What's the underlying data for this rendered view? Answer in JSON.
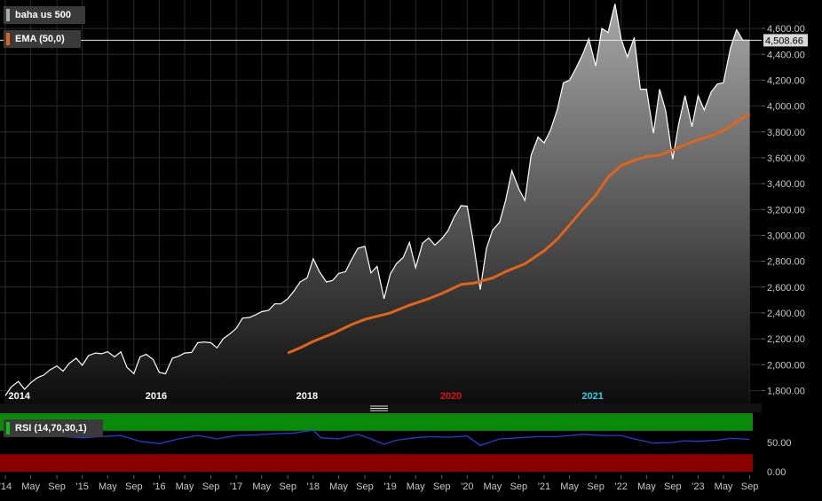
{
  "colors": {
    "background": "#000000",
    "grid": "#2b2b2b",
    "price_line": "#ffffff",
    "price_fill_top": "#a8a8a8",
    "price_fill_bottom": "#0c0c0c",
    "ema": "#e0651a",
    "rsi_line": "#1f3fd6",
    "rsi_overbought": "#0a8a0a",
    "rsi_oversold": "#8a0000",
    "axis_text": "#c8c8c8",
    "price_tag_bg": "#d9d9d9",
    "legend_bg": "#3a3a3a",
    "legend_swatch_price": "#aaaaaa"
  },
  "legend": {
    "price_label": "baha us 500",
    "ema_label": "EMA (50,0)",
    "rsi_label": "RSI (14,70,30,1)"
  },
  "last_price_label": "4,508.66",
  "year_labels": [
    {
      "text": "2014",
      "color": "#ffffff",
      "x": 2014.04
    },
    {
      "text": "2016",
      "color": "#ffffff",
      "x": 2015.96
    },
    {
      "text": "2018",
      "color": "#ffffff",
      "x": 2017.92
    },
    {
      "text": "2020",
      "color": "#e01010",
      "x": 2019.79
    },
    {
      "text": "2021",
      "color": "#22d3e6",
      "x": 2021.63
    }
  ],
  "chart_data": [
    {
      "type": "area",
      "title": "",
      "xlabel": "",
      "ylabel": "",
      "ylim": [
        1700,
        4820
      ],
      "xlim": [
        2014.0,
        2023.71
      ],
      "y_ticks": [
        1800,
        2000,
        2200,
        2400,
        2600,
        2800,
        3000,
        3200,
        3400,
        3600,
        3800,
        4000,
        4200,
        4400,
        4600
      ],
      "y_tick_labels": [
        "1,800.00",
        "2,000.00",
        "2,200.00",
        "2,400.00",
        "2,600.00",
        "2,800.00",
        "3,000.00",
        "3,200.00",
        "3,400.00",
        "3,600.00",
        "3,800.00",
        "4,000.00",
        "4,200.00",
        "4,400.00",
        "4,600.00"
      ],
      "x_ticks": [
        2014.0,
        2014.33,
        2014.67,
        2015.0,
        2015.33,
        2015.67,
        2016.0,
        2016.33,
        2016.67,
        2017.0,
        2017.33,
        2017.67,
        2018.0,
        2018.33,
        2018.67,
        2019.0,
        2019.33,
        2019.67,
        2020.0,
        2020.33,
        2020.67,
        2021.0,
        2021.33,
        2021.67,
        2022.0,
        2022.33,
        2022.67,
        2023.0,
        2023.33,
        2023.67
      ],
      "x_tick_labels": [
        "'14",
        "May",
        "Sep",
        "'15",
        "May",
        "Sep",
        "'16",
        "May",
        "Sep",
        "'17",
        "May",
        "Sep",
        "'18",
        "May",
        "Sep",
        "'19",
        "May",
        "Sep",
        "'20",
        "May",
        "Sep",
        "'21",
        "May",
        "Sep",
        "'22",
        "May",
        "Sep",
        "'23",
        "May",
        "Sep"
      ],
      "last_value": 4508.66,
      "series": [
        {
          "name": "baha us 500",
          "kind": "area",
          "points": [
            [
              2014.0,
              1760
            ],
            [
              2014.08,
              1830
            ],
            [
              2014.17,
              1870
            ],
            [
              2014.25,
              1810
            ],
            [
              2014.33,
              1860
            ],
            [
              2014.42,
              1900
            ],
            [
              2014.5,
              1920
            ],
            [
              2014.58,
              1960
            ],
            [
              2014.67,
              1990
            ],
            [
              2014.75,
              1950
            ],
            [
              2014.83,
              2010
            ],
            [
              2014.92,
              2050
            ],
            [
              2015.0,
              1995
            ],
            [
              2015.08,
              2070
            ],
            [
              2015.17,
              2090
            ],
            [
              2015.25,
              2085
            ],
            [
              2015.33,
              2100
            ],
            [
              2015.42,
              2060
            ],
            [
              2015.5,
              2100
            ],
            [
              2015.58,
              1980
            ],
            [
              2015.67,
              1930
            ],
            [
              2015.75,
              2060
            ],
            [
              2015.83,
              2080
            ],
            [
              2015.92,
              2040
            ],
            [
              2016.0,
              1940
            ],
            [
              2016.08,
              1930
            ],
            [
              2016.17,
              2050
            ],
            [
              2016.25,
              2065
            ],
            [
              2016.33,
              2090
            ],
            [
              2016.42,
              2095
            ],
            [
              2016.5,
              2170
            ],
            [
              2016.58,
              2175
            ],
            [
              2016.67,
              2170
            ],
            [
              2016.75,
              2130
            ],
            [
              2016.83,
              2200
            ],
            [
              2016.92,
              2240
            ],
            [
              2017.0,
              2280
            ],
            [
              2017.08,
              2360
            ],
            [
              2017.17,
              2365
            ],
            [
              2017.25,
              2385
            ],
            [
              2017.33,
              2410
            ],
            [
              2017.42,
              2420
            ],
            [
              2017.5,
              2470
            ],
            [
              2017.58,
              2470
            ],
            [
              2017.67,
              2510
            ],
            [
              2017.75,
              2570
            ],
            [
              2017.83,
              2640
            ],
            [
              2017.92,
              2670
            ],
            [
              2018.0,
              2820
            ],
            [
              2018.08,
              2720
            ],
            [
              2018.17,
              2640
            ],
            [
              2018.25,
              2650
            ],
            [
              2018.33,
              2705
            ],
            [
              2018.42,
              2720
            ],
            [
              2018.5,
              2815
            ],
            [
              2018.58,
              2900
            ],
            [
              2018.67,
              2915
            ],
            [
              2018.75,
              2710
            ],
            [
              2018.83,
              2760
            ],
            [
              2018.92,
              2510
            ],
            [
              2019.0,
              2700
            ],
            [
              2019.08,
              2780
            ],
            [
              2019.17,
              2830
            ],
            [
              2019.25,
              2945
            ],
            [
              2019.33,
              2750
            ],
            [
              2019.42,
              2940
            ],
            [
              2019.5,
              2980
            ],
            [
              2019.58,
              2925
            ],
            [
              2019.67,
              2975
            ],
            [
              2019.75,
              3035
            ],
            [
              2019.83,
              3140
            ],
            [
              2019.92,
              3230
            ],
            [
              2020.0,
              3225
            ],
            [
              2020.08,
              2950
            ],
            [
              2020.17,
              2580
            ],
            [
              2020.25,
              2900
            ],
            [
              2020.33,
              3040
            ],
            [
              2020.42,
              3100
            ],
            [
              2020.5,
              3270
            ],
            [
              2020.58,
              3500
            ],
            [
              2020.67,
              3360
            ],
            [
              2020.75,
              3270
            ],
            [
              2020.83,
              3620
            ],
            [
              2020.92,
              3760
            ],
            [
              2021.0,
              3715
            ],
            [
              2021.08,
              3810
            ],
            [
              2021.17,
              3970
            ],
            [
              2021.25,
              4180
            ],
            [
              2021.33,
              4200
            ],
            [
              2021.42,
              4300
            ],
            [
              2021.5,
              4400
            ],
            [
              2021.58,
              4520
            ],
            [
              2021.67,
              4310
            ],
            [
              2021.75,
              4600
            ],
            [
              2021.83,
              4570
            ],
            [
              2021.92,
              4790
            ],
            [
              2022.0,
              4520
            ],
            [
              2022.08,
              4380
            ],
            [
              2022.17,
              4530
            ],
            [
              2022.25,
              4130
            ],
            [
              2022.33,
              4130
            ],
            [
              2022.42,
              3790
            ],
            [
              2022.5,
              4130
            ],
            [
              2022.58,
              3960
            ],
            [
              2022.67,
              3590
            ],
            [
              2022.75,
              3870
            ],
            [
              2022.83,
              4080
            ],
            [
              2022.92,
              3840
            ],
            [
              2023.0,
              4080
            ],
            [
              2023.08,
              3970
            ],
            [
              2023.17,
              4110
            ],
            [
              2023.25,
              4170
            ],
            [
              2023.33,
              4180
            ],
            [
              2023.42,
              4450
            ],
            [
              2023.5,
              4590
            ],
            [
              2023.58,
              4510
            ],
            [
              2023.67,
              4508.66
            ]
          ]
        },
        {
          "name": "EMA (50,0)",
          "kind": "line",
          "points": [
            [
              2017.67,
              2090
            ],
            [
              2017.83,
              2130
            ],
            [
              2018.0,
              2180
            ],
            [
              2018.25,
              2240
            ],
            [
              2018.5,
              2310
            ],
            [
              2018.67,
              2350
            ],
            [
              2019.0,
              2400
            ],
            [
              2019.25,
              2460
            ],
            [
              2019.5,
              2510
            ],
            [
              2019.67,
              2550
            ],
            [
              2019.92,
              2620
            ],
            [
              2020.08,
              2630
            ],
            [
              2020.33,
              2670
            ],
            [
              2020.5,
              2720
            ],
            [
              2020.75,
              2780
            ],
            [
              2021.0,
              2880
            ],
            [
              2021.17,
              2970
            ],
            [
              2021.33,
              3080
            ],
            [
              2021.5,
              3200
            ],
            [
              2021.67,
              3310
            ],
            [
              2021.83,
              3450
            ],
            [
              2022.0,
              3540
            ],
            [
              2022.17,
              3580
            ],
            [
              2022.33,
              3610
            ],
            [
              2022.5,
              3620
            ],
            [
              2022.67,
              3660
            ],
            [
              2022.83,
              3700
            ],
            [
              2023.0,
              3740
            ],
            [
              2023.17,
              3770
            ],
            [
              2023.33,
              3810
            ],
            [
              2023.5,
              3880
            ],
            [
              2023.67,
              3940
            ]
          ]
        }
      ]
    },
    {
      "type": "line",
      "title": "",
      "xlabel": "",
      "ylabel": "",
      "ylim": [
        0,
        100
      ],
      "y_ticks": [
        0,
        50
      ],
      "y_tick_labels": [
        "0.00",
        "50.00"
      ],
      "bands": [
        {
          "name": "overbought",
          "from": 70,
          "to": 100
        },
        {
          "name": "oversold",
          "from": 0,
          "to": 30
        }
      ],
      "series": [
        {
          "name": "RSI (14,70,30,1)",
          "points": [
            [
              2014.0,
              60
            ],
            [
              2014.25,
              63
            ],
            [
              2014.5,
              64
            ],
            [
              2014.75,
              60
            ],
            [
              2015.0,
              58
            ],
            [
              2015.25,
              60
            ],
            [
              2015.5,
              62
            ],
            [
              2015.75,
              52
            ],
            [
              2016.0,
              48
            ],
            [
              2016.25,
              56
            ],
            [
              2016.5,
              62
            ],
            [
              2016.75,
              56
            ],
            [
              2017.0,
              62
            ],
            [
              2017.25,
              63
            ],
            [
              2017.5,
              65
            ],
            [
              2017.75,
              66
            ],
            [
              2018.0,
              71
            ],
            [
              2018.1,
              58
            ],
            [
              2018.33,
              56
            ],
            [
              2018.58,
              64
            ],
            [
              2018.75,
              56
            ],
            [
              2018.92,
              47
            ],
            [
              2019.08,
              54
            ],
            [
              2019.33,
              58
            ],
            [
              2019.5,
              60
            ],
            [
              2019.75,
              59
            ],
            [
              2020.0,
              61
            ],
            [
              2020.17,
              45
            ],
            [
              2020.42,
              56
            ],
            [
              2020.67,
              58
            ],
            [
              2020.92,
              60
            ],
            [
              2021.17,
              60
            ],
            [
              2021.5,
              64
            ],
            [
              2021.75,
              62
            ],
            [
              2022.0,
              62
            ],
            [
              2022.17,
              56
            ],
            [
              2022.42,
              49
            ],
            [
              2022.67,
              50
            ],
            [
              2022.83,
              53
            ],
            [
              2023.0,
              52
            ],
            [
              2023.25,
              54
            ],
            [
              2023.42,
              57
            ],
            [
              2023.58,
              56
            ],
            [
              2023.67,
              55
            ]
          ]
        }
      ]
    }
  ]
}
